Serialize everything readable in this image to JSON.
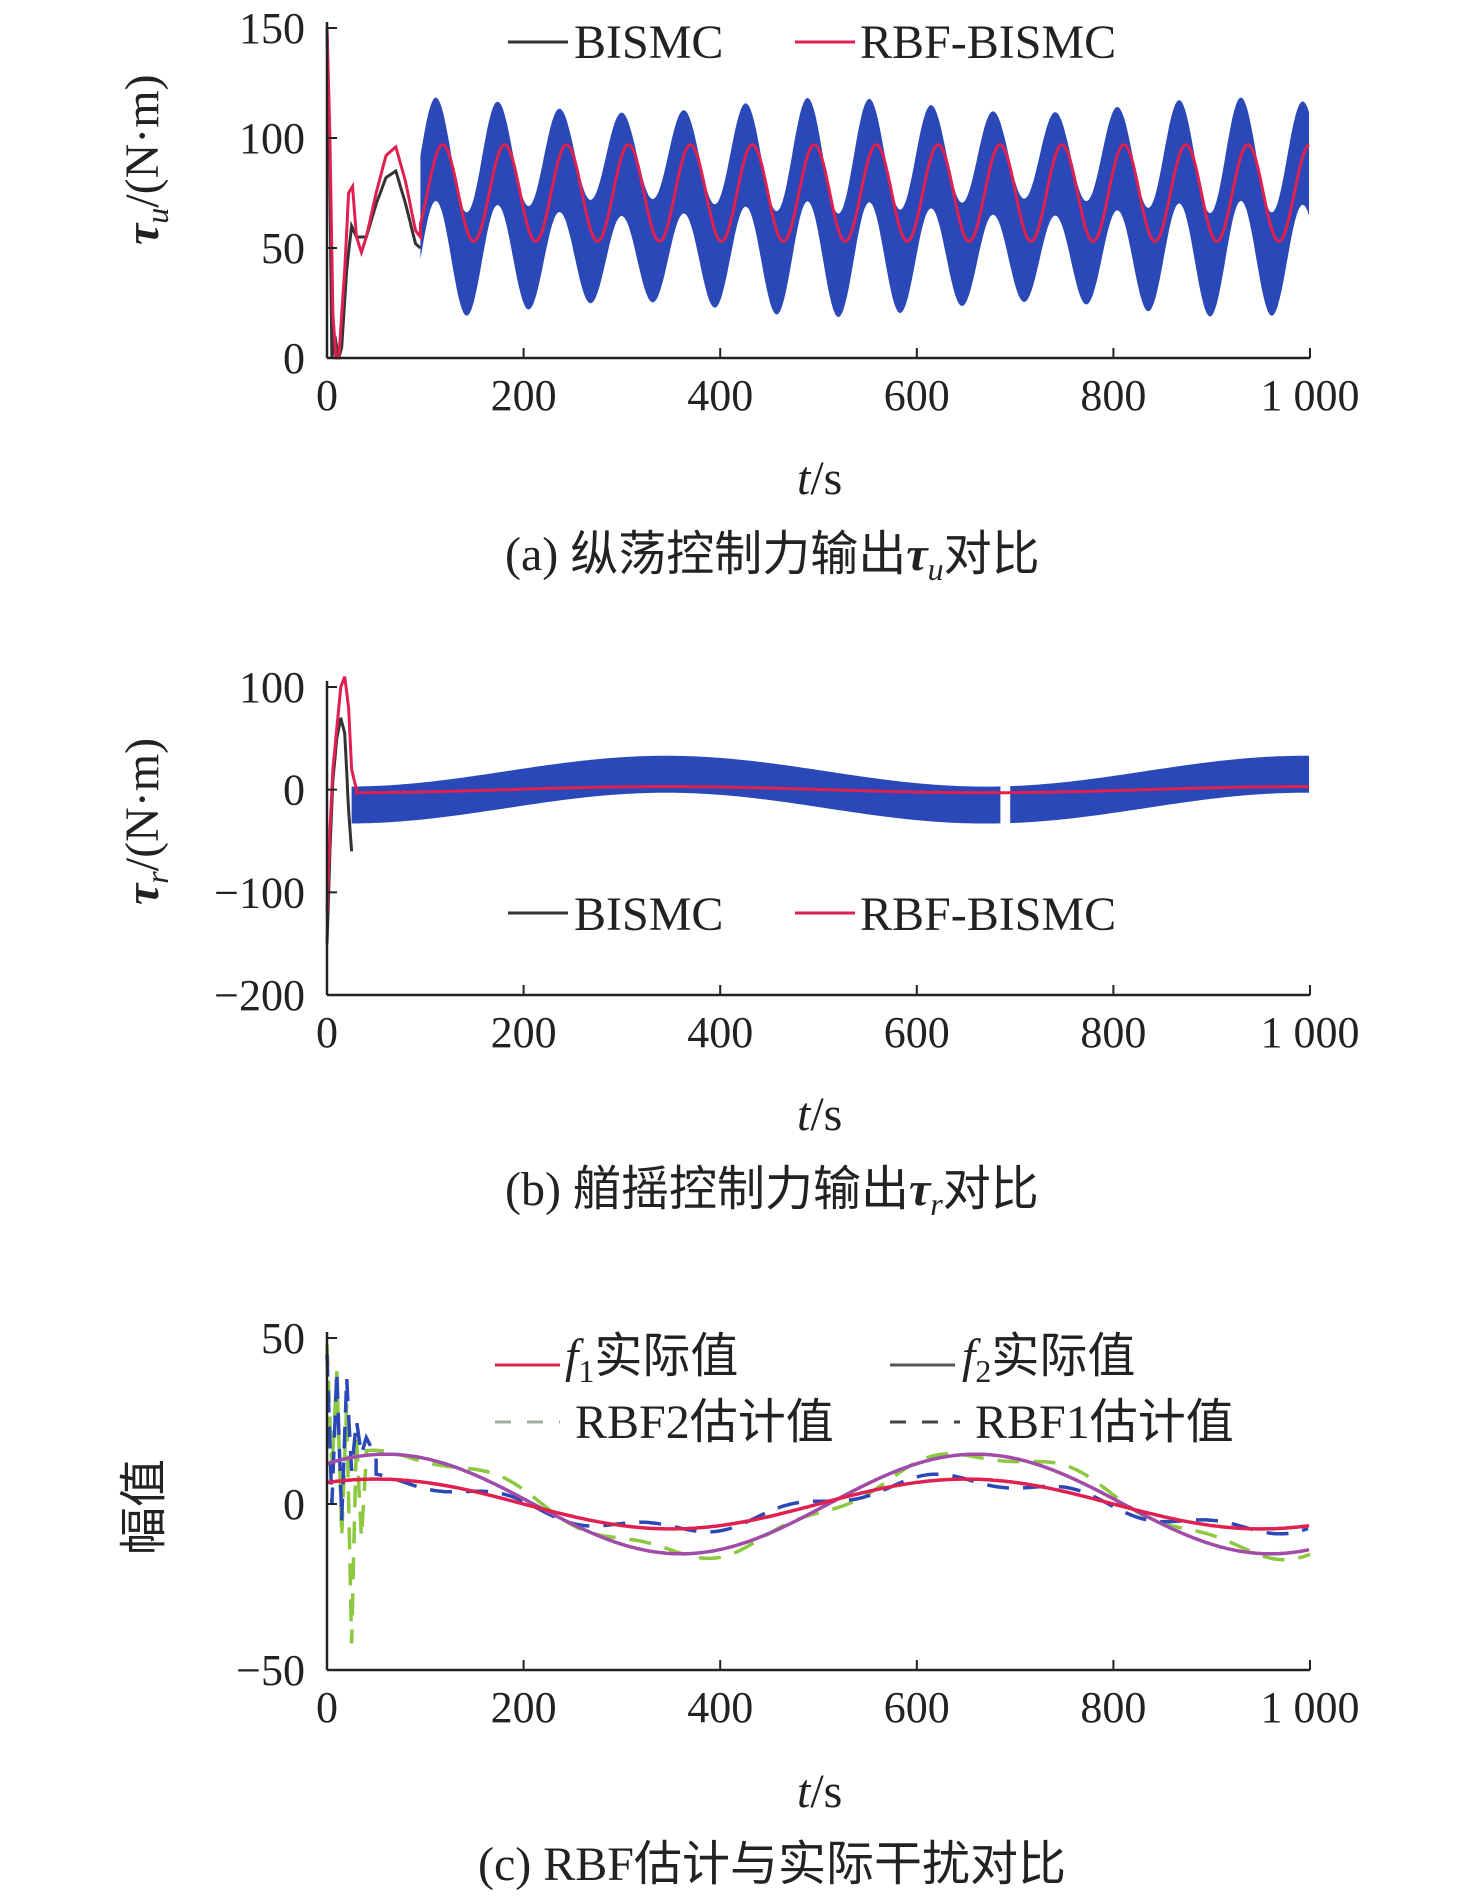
{
  "colors": {
    "axis": "#222222",
    "bismc": "#2b48b8",
    "bismc_line": "#333333",
    "rbf_bismc": "#e0204f",
    "f1": "#e0204f",
    "f2": "#a04ca8",
    "rbf2": "#8cc840",
    "rbf1": "#2b48b8"
  },
  "chart_data": [
    {
      "type": "line",
      "id": "a",
      "caption": "(a) 纵荡控制力输出τu对比",
      "caption_prefix": "(a) 纵荡控制力输出",
      "caption_symbol": "τ",
      "caption_symbol_sub": "u",
      "caption_suffix": "对比",
      "xlabel_var": "t",
      "xlabel_unit": "/s",
      "ylabel_symbol": "τ",
      "ylabel_sub": "u",
      "ylabel_unit": "/(N·m)",
      "xlim": [
        0,
        1000
      ],
      "ylim": [
        0,
        150
      ],
      "xticks": [
        0,
        200,
        400,
        600,
        800,
        1000
      ],
      "xtick_labels": [
        "0",
        "200",
        "400",
        "600",
        "800",
        "1 000"
      ],
      "yticks": [
        0,
        50,
        100,
        150
      ],
      "ytick_labels": [
        "0",
        "50",
        "100",
        "150"
      ],
      "legend": [
        "BISMC",
        "RBF-BISMC"
      ],
      "legend_position": "top",
      "series": [
        {
          "name": "BISMC",
          "style": "band",
          "band_start": 95,
          "band_center": 70,
          "band_halfwidth": 22,
          "center_amplitude": 23,
          "period": 63,
          "transient_x": [
            0,
            3,
            5,
            8,
            12,
            15,
            20,
            25,
            30,
            40,
            50,
            60,
            70,
            80,
            90,
            95
          ],
          "transient_y": [
            150,
            80,
            0,
            10,
            0,
            5,
            40,
            60,
            55,
            55,
            70,
            82,
            85,
            70,
            52,
            50
          ]
        },
        {
          "name": "RBF-BISMC",
          "style": "line",
          "steady_start": 95,
          "steady_center": 75,
          "steady_amplitude": 22,
          "period": 63,
          "transient_x": [
            0,
            3,
            6,
            9,
            12,
            15,
            18,
            22,
            26,
            30,
            35,
            40,
            50,
            60,
            70,
            80,
            90,
            95
          ],
          "transient_y": [
            150,
            100,
            20,
            0,
            0,
            20,
            40,
            75,
            78,
            55,
            48,
            55,
            75,
            92,
            96,
            80,
            58,
            55
          ]
        }
      ]
    },
    {
      "type": "line",
      "id": "b",
      "caption": "(b) 艏摇控制力输出τr对比",
      "caption_prefix": "(b) 艏摇控制力输出",
      "caption_symbol": "τ",
      "caption_symbol_sub": "r",
      "caption_suffix": "对比",
      "xlabel_var": "t",
      "xlabel_unit": "/s",
      "ylabel_symbol": "τ",
      "ylabel_sub": "r",
      "ylabel_unit": "/(N·m)",
      "xlim": [
        0,
        1000
      ],
      "ylim": [
        -200,
        100
      ],
      "xticks": [
        0,
        200,
        400,
        600,
        800,
        1000
      ],
      "xtick_labels": [
        "0",
        "200",
        "400",
        "600",
        "800",
        "1 000"
      ],
      "yticks": [
        -200,
        -100,
        0,
        100
      ],
      "ytick_labels": [
        "−200",
        "−100",
        "0",
        "100"
      ],
      "legend": [
        "BISMC",
        "RBF-BISMC"
      ],
      "legend_position": "bottom",
      "series": [
        {
          "name": "BISMC",
          "style": "band",
          "band_start": 25,
          "band_halfwidth": 18,
          "center_amplitude": 15,
          "period": 650,
          "center_phase_x": 35,
          "gap_x": [
            685,
            695
          ],
          "transient_x": [
            0,
            3,
            6,
            10,
            14,
            18,
            22,
            25
          ],
          "transient_y": [
            -150,
            -60,
            10,
            50,
            70,
            55,
            -20,
            -60
          ]
        },
        {
          "name": "RBF-BISMC",
          "style": "line",
          "steady_start": 25,
          "steady_amplitude": 3,
          "period": 650,
          "transient_x": [
            0,
            3,
            6,
            10,
            14,
            18,
            22,
            25,
            30
          ],
          "transient_y": [
            -120,
            -40,
            20,
            60,
            100,
            110,
            80,
            20,
            0
          ]
        }
      ]
    },
    {
      "type": "line",
      "id": "c",
      "caption": "(c) RBF估计与实际干扰对比",
      "xlabel_var": "t",
      "xlabel_unit": "/s",
      "ylabel": "幅值",
      "xlim": [
        0,
        1000
      ],
      "ylim": [
        -50,
        50
      ],
      "xticks": [
        0,
        200,
        400,
        600,
        800,
        1000
      ],
      "xtick_labels": [
        "0",
        "200",
        "400",
        "600",
        "800",
        "1 000"
      ],
      "yticks": [
        -50,
        0,
        50
      ],
      "ytick_labels": [
        "−50",
        "0",
        "50"
      ],
      "legend_position": "top",
      "series": [
        {
          "name_var": "f",
          "name_sub": "1",
          "name_suffix": "实际值",
          "style": "solid",
          "amplitude": 7.5,
          "period": 600,
          "phase": 50
        },
        {
          "name_var": "f",
          "name_sub": "2",
          "name_suffix": "实际值",
          "style": "solid",
          "amplitude": 15,
          "period": 600,
          "phase": 60
        },
        {
          "name": "RBF2估计值",
          "style": "dashed",
          "amplitude": 15,
          "period": 600,
          "phase": 70,
          "transient_x": [
            0,
            5,
            10,
            15,
            20,
            25,
            30,
            35,
            40
          ],
          "transient_y": [
            48,
            10,
            40,
            -10,
            30,
            -42,
            20,
            -10,
            14
          ]
        },
        {
          "name": "RBF1估计值",
          "style": "dashed",
          "amplitude": 7.5,
          "period": 600,
          "phase": 45,
          "transient_x": [
            0,
            5,
            10,
            15,
            20,
            25,
            30,
            35,
            40,
            50
          ],
          "transient_y": [
            45,
            0,
            40,
            -5,
            38,
            10,
            25,
            15,
            20,
            14
          ]
        }
      ]
    }
  ]
}
